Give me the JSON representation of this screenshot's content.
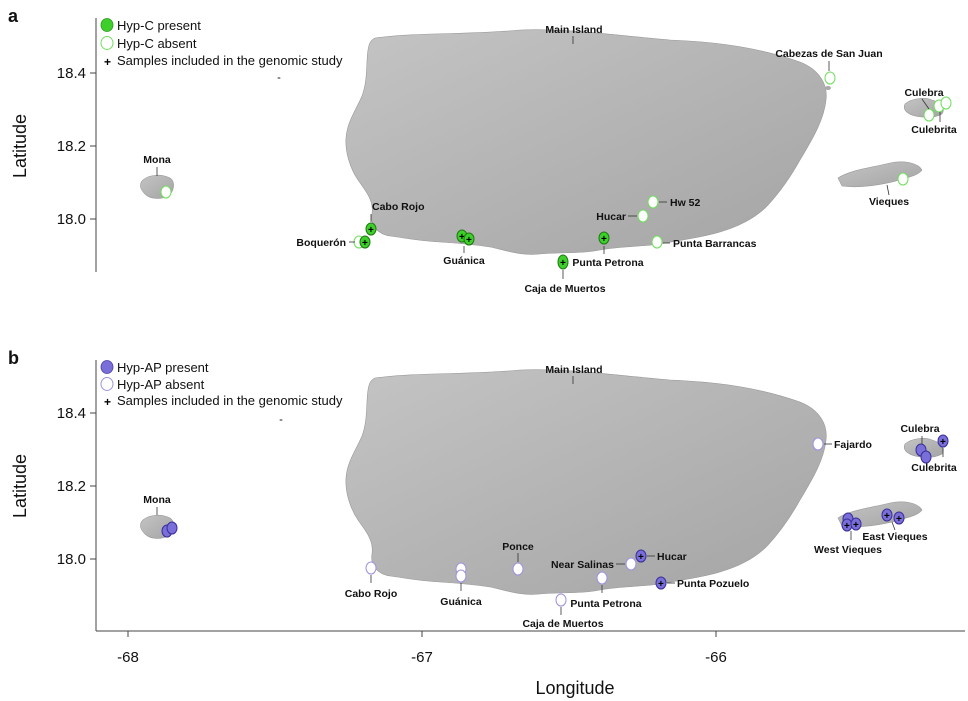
{
  "colors": {
    "hyp_c": "#3ecf2a",
    "hyp_c_absent_stroke": "#6fe05c",
    "hyp_ap": "#7a6fd8",
    "hyp_ap_absent_stroke": "#9b93df",
    "land": "#b3b3b3",
    "cross": "#111111"
  },
  "icons": {
    "present": "filled-ellipse-icon",
    "absent": "hollow-ellipse-icon",
    "samples": "plus-cross-icon"
  },
  "axes": {
    "xlabel": "Longitude",
    "ylabel": "Latitude",
    "x_ticks": [
      "-68",
      "-67",
      "-66"
    ],
    "y_ticks": [
      "18.0",
      "18.2",
      "18.4"
    ]
  },
  "panels": [
    {
      "letter": "a",
      "legend": {
        "present": "Hyp-C present",
        "absent": "Hyp-C absent",
        "samples": "Samples included in the genomic study"
      },
      "labels": {
        "main_island": "Main Island",
        "mona": "Mona",
        "cabezas": "Cabezas de San Juan",
        "culebra": "Culebra",
        "culebrita": "Culebrita",
        "vieques": "Vieques",
        "cabo_rojo": "Cabo Rojo",
        "boqueron": "Boquerón",
        "guanica": "Guánica",
        "caja": "Caja de Muertos",
        "punta_petrona": "Punta Petrona",
        "hucar": "Hucar",
        "hw52": "Hw 52",
        "punta_barrancas": "Punta Barrancas"
      }
    },
    {
      "letter": "b",
      "legend": {
        "present": "Hyp-AP present",
        "absent": "Hyp-AP absent",
        "samples": "Samples included in the genomic study"
      },
      "labels": {
        "main_island": "Main Island",
        "mona": "Mona",
        "fajardo": "Fajardo",
        "culebra": "Culebra",
        "culebrita": "Culebrita",
        "east_vieques": "East Vieques",
        "west_vieques": "West Vieques",
        "cabo_rojo": "Cabo Rojo",
        "guanica": "Guánica",
        "ponce": "Ponce",
        "near_salinas": "Near Salinas",
        "hucar": "Hucar",
        "punta_pozuelo": "Punta Pozuelo",
        "punta_petrona": "Punta Petrona",
        "caja": "Caja de Muertos"
      }
    }
  ]
}
